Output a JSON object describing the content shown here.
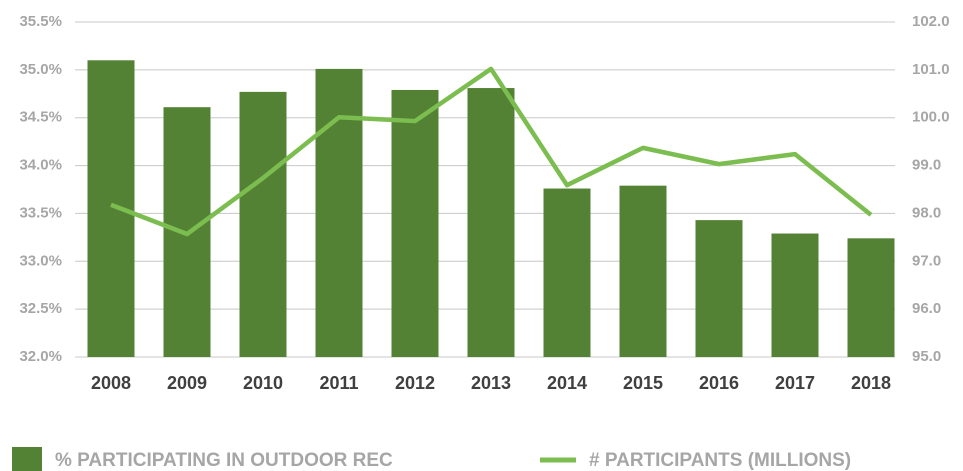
{
  "chart_data": {
    "type": "bar",
    "categories": [
      "2008",
      "2009",
      "2010",
      "2011",
      "2012",
      "2013",
      "2014",
      "2015",
      "2016",
      "2017",
      "2018"
    ],
    "series": [
      {
        "name": "% PARTICIPATING IN OUTDOOR REC",
        "type": "bar",
        "color": "#548235",
        "values": [
          35.1,
          34.61,
          34.77,
          35.01,
          34.79,
          34.81,
          33.76,
          33.79,
          33.43,
          33.29,
          33.24
        ]
      },
      {
        "name": "# PARTICIPANTS (MILLIONS)",
        "type": "line",
        "axis": "y2",
        "color": "#7cbd50",
        "values": [
          98.18,
          97.57,
          98.74,
          100.01,
          99.93,
          101.02,
          98.59,
          99.37,
          99.03,
          99.24,
          97.97
        ]
      }
    ],
    "ylim": [
      32,
      35.5
    ],
    "yticks": [
      {
        "value": 32,
        "label": "32.0%"
      },
      {
        "value": 32.5,
        "label": "32.5%"
      },
      {
        "value": 33,
        "label": "33.0%"
      },
      {
        "value": 33.5,
        "label": "33.5%"
      },
      {
        "value": 34,
        "label": "34.0%"
      },
      {
        "value": 34.5,
        "label": "34.5%"
      },
      {
        "value": 35,
        "label": "35.0%"
      },
      {
        "value": 35.5,
        "label": "35.5%"
      }
    ],
    "y2lim": [
      95,
      102
    ],
    "y2ticks": [
      {
        "value": 95,
        "label": "95.0"
      },
      {
        "value": 96,
        "label": "96.0"
      },
      {
        "value": 97,
        "label": "97.0"
      },
      {
        "value": 98,
        "label": "98.0"
      },
      {
        "value": 99,
        "label": "99.0"
      },
      {
        "value": 100,
        "label": "100.0"
      },
      {
        "value": 101,
        "label": "101.0"
      },
      {
        "value": 102,
        "label": "102.0"
      }
    ],
    "grid": true,
    "legend": "bottom"
  }
}
